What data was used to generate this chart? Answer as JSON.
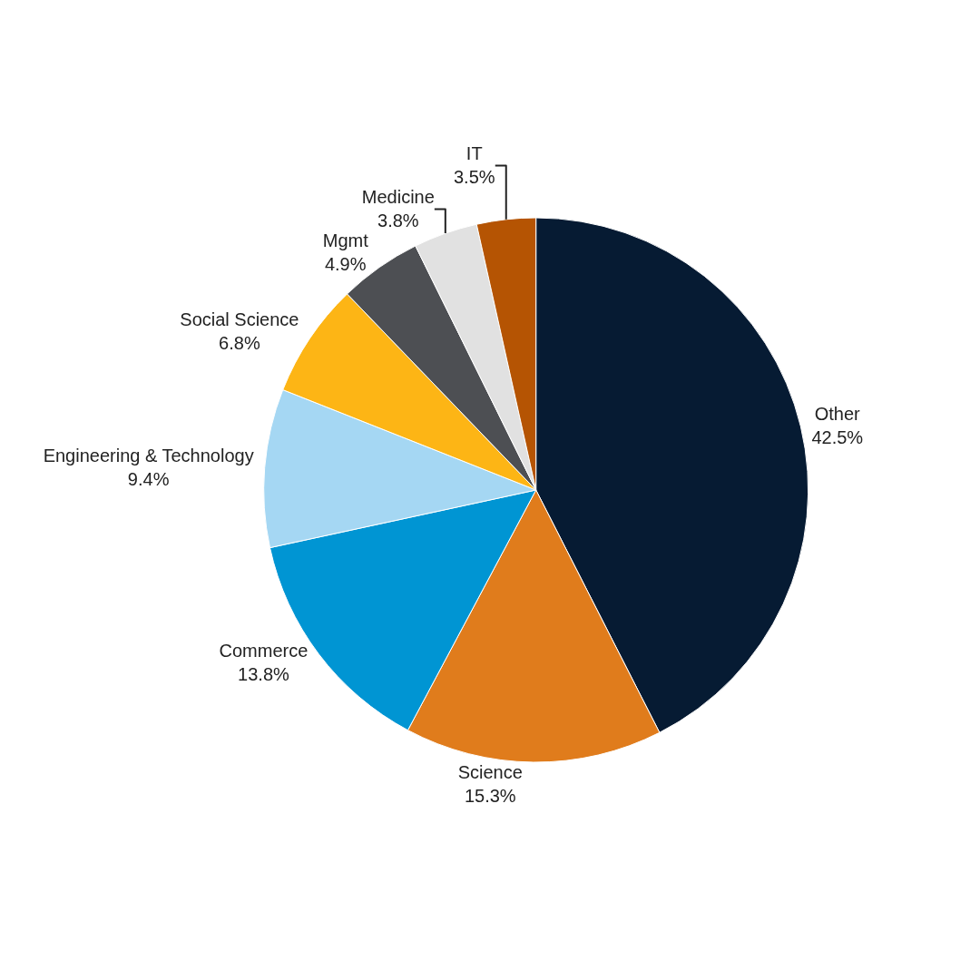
{
  "chart_data": {
    "type": "pie",
    "categories": [
      "Other",
      "Science",
      "Commerce",
      "Engineering & Technology",
      "Social Science",
      "Mgmt",
      "Medicine",
      "IT"
    ],
    "values": [
      42.5,
      15.3,
      13.8,
      9.4,
      6.8,
      4.9,
      3.8,
      3.5
    ],
    "value_labels": [
      "42.5%",
      "15.3%",
      "13.8%",
      "9.4%",
      "6.8%",
      "4.9%",
      "3.8%",
      "3.5%"
    ],
    "colors": [
      "#061b33",
      "#e07c1c",
      "#0095d3",
      "#a5d7f3",
      "#fdb515",
      "#4d4f53",
      "#e1e1e1",
      "#b55403"
    ],
    "legend": false
  }
}
